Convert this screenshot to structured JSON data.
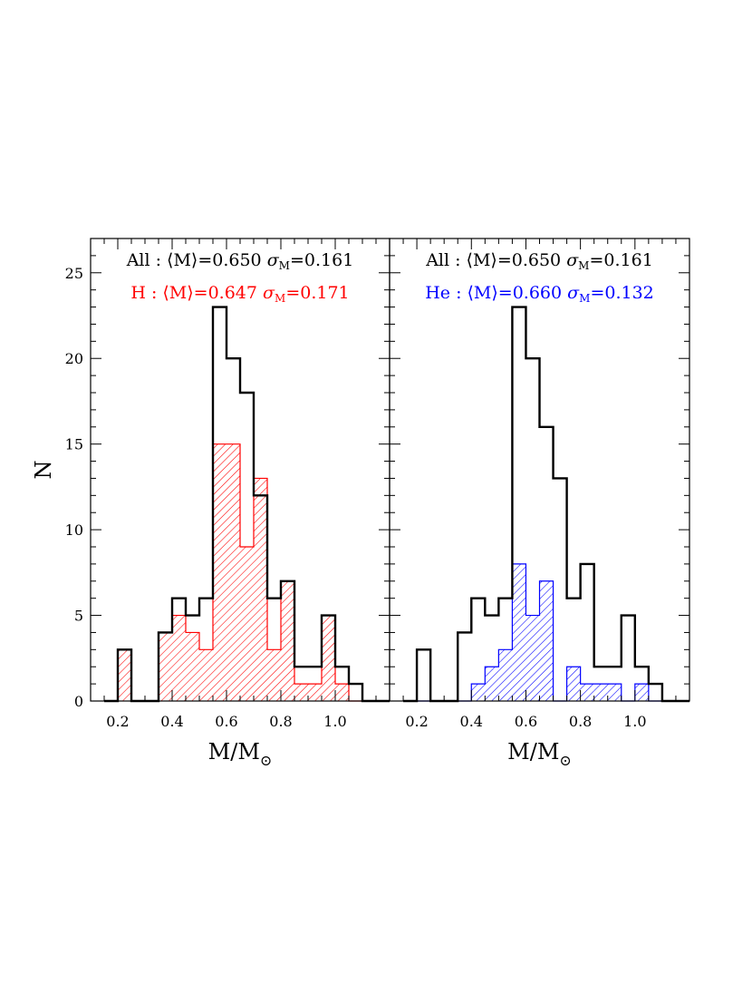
{
  "chart_data": [
    {
      "type": "histogram",
      "panel": "left",
      "bin_edges": [
        0.15,
        0.2,
        0.25,
        0.3,
        0.35,
        0.4,
        0.45,
        0.5,
        0.55,
        0.6,
        0.65,
        0.7,
        0.75,
        0.8,
        0.85,
        0.9,
        0.95,
        1.0,
        1.05,
        1.1,
        1.15,
        1.2
      ],
      "series": [
        {
          "name": "All",
          "color": "#000000",
          "fill": "none",
          "values": [
            0,
            3,
            0,
            0,
            4,
            6,
            5,
            6,
            23,
            20,
            18,
            12,
            6,
            7,
            2,
            2,
            5,
            2,
            1,
            0,
            0
          ]
        },
        {
          "name": "H",
          "color": "#ff0000",
          "fill": "hatch",
          "values": [
            0,
            3,
            0,
            0,
            4,
            5,
            4,
            3,
            15,
            15,
            9,
            13,
            3,
            7,
            1,
            1,
            5,
            1,
            0,
            0,
            0
          ]
        }
      ],
      "annotations": [
        {
          "label": "All",
          "mean": "0.650",
          "sigma": "0.161",
          "color": "#000000"
        },
        {
          "label": "H",
          "mean": "0.647",
          "sigma": "0.171",
          "color": "#ff0000"
        }
      ],
      "xlim": [
        0.1,
        1.2
      ],
      "ylim": [
        0,
        27
      ],
      "xticks": [
        "0.2",
        "0.4",
        "0.6",
        "0.8",
        "1.0"
      ],
      "yticks": [
        "0",
        "5",
        "10",
        "15",
        "20",
        "25"
      ],
      "ylabel": "N",
      "xlabel": "M/M",
      "xlabel_sub": "⊙"
    },
    {
      "type": "histogram",
      "panel": "right",
      "bin_edges": [
        0.15,
        0.2,
        0.25,
        0.3,
        0.35,
        0.4,
        0.45,
        0.5,
        0.55,
        0.6,
        0.65,
        0.7,
        0.75,
        0.8,
        0.85,
        0.9,
        0.95,
        1.0,
        1.05,
        1.1,
        1.15,
        1.2
      ],
      "series": [
        {
          "name": "All",
          "color": "#000000",
          "fill": "none",
          "values": [
            0,
            3,
            0,
            0,
            4,
            6,
            5,
            6,
            23,
            20,
            16,
            13,
            6,
            8,
            2,
            2,
            5,
            2,
            1,
            0,
            0
          ]
        },
        {
          "name": "He",
          "color": "#0000ff",
          "fill": "hatch",
          "values": [
            0,
            0,
            0,
            0,
            0,
            1,
            2,
            3,
            8,
            5,
            7,
            0,
            2,
            1,
            1,
            1,
            0,
            1,
            0,
            0,
            0
          ]
        }
      ],
      "annotations": [
        {
          "label": "All",
          "mean": "0.650",
          "sigma": "0.161",
          "color": "#000000"
        },
        {
          "label": "He",
          "mean": "0.660",
          "sigma": "0.132",
          "color": "#0000ff"
        }
      ],
      "xlim": [
        0.1,
        1.2
      ],
      "ylim": [
        0,
        27
      ],
      "xticks": [
        "0.2",
        "0.4",
        "0.6",
        "0.8",
        "1.0"
      ],
      "yticks": [],
      "ylabel": "",
      "xlabel": "M/M",
      "xlabel_sub": "⊙"
    }
  ]
}
